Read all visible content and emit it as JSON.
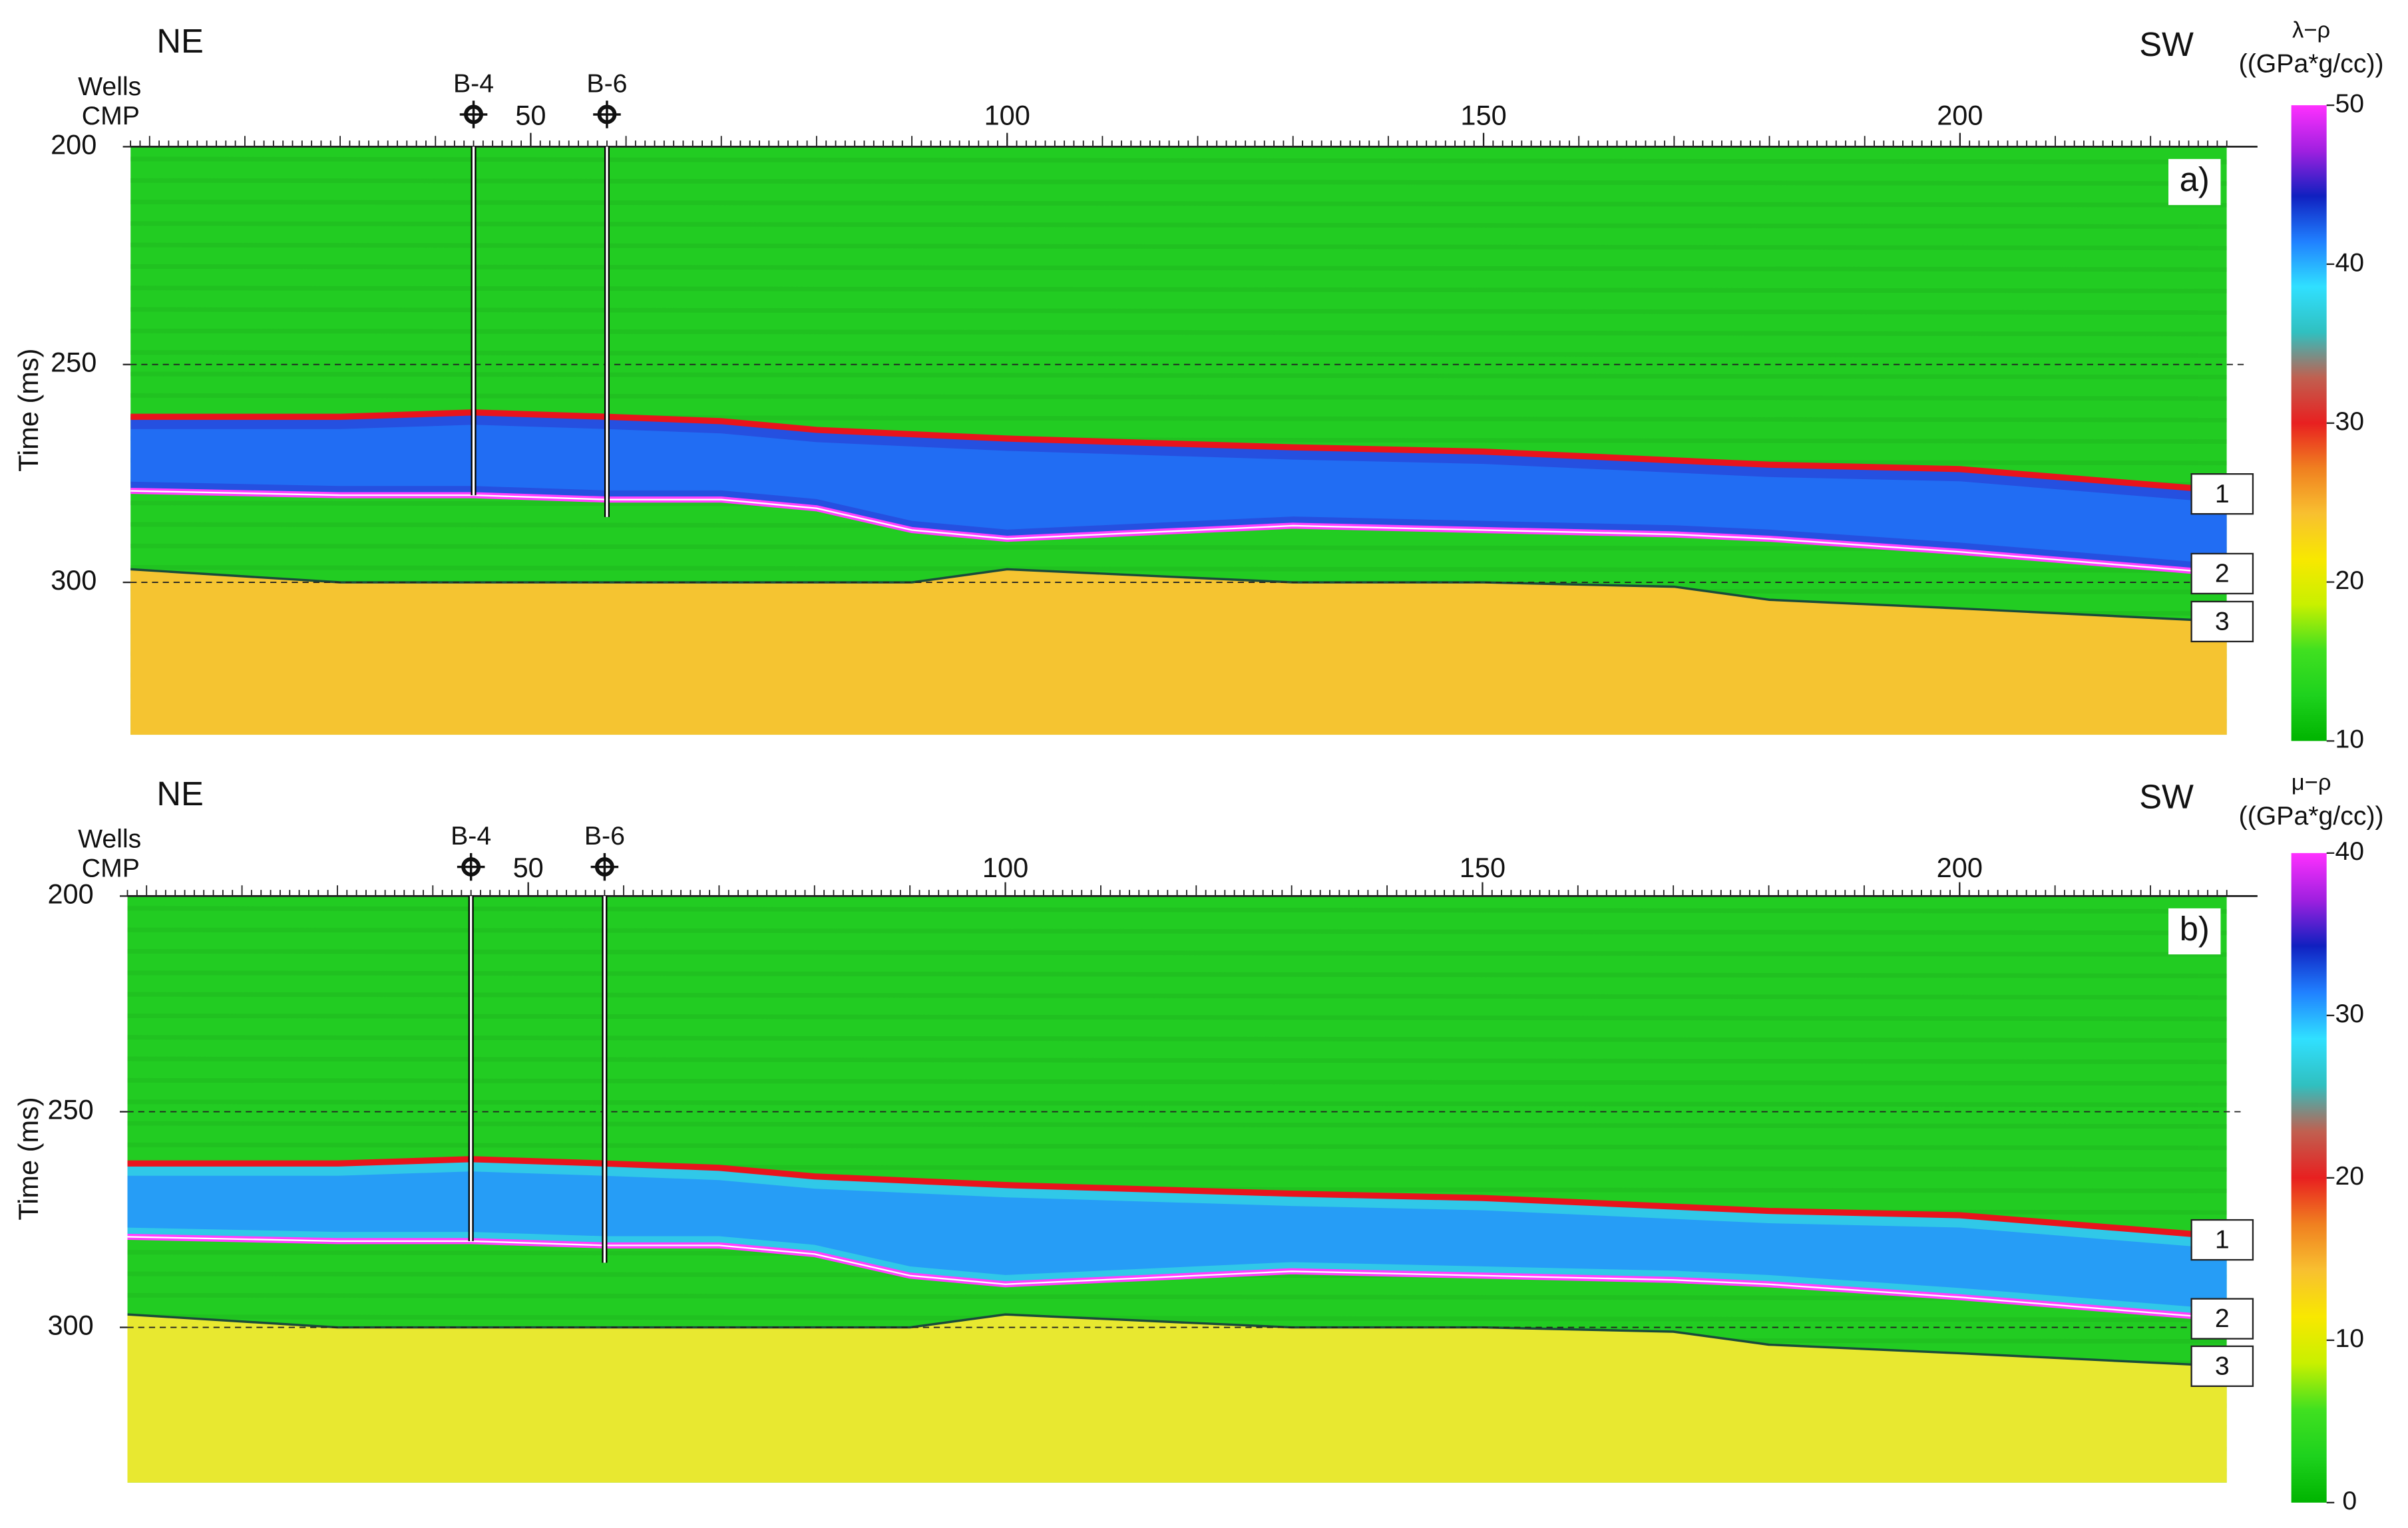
{
  "chart_data": [
    {
      "type": "seismic",
      "direction_left": "NE",
      "direction_right": "SW",
      "wells_label": "Wells",
      "x_label": "CMP",
      "y_label": "Time (ms)",
      "panel_label": "a)",
      "colorbar_title": "λ−ρ",
      "colorbar_unit": "((GPa*g/cc))",
      "xlim": [
        8,
        228
      ],
      "xticks": [
        50,
        100,
        150,
        200
      ],
      "ylim": [
        200,
        335
      ],
      "yticks": [
        200,
        250,
        300
      ],
      "grid": true,
      "clim": [
        10,
        50
      ],
      "cticks": [
        10,
        20,
        30,
        40,
        50
      ],
      "colormap": [
        "#00b400",
        "#1ed21e",
        "#40e020",
        "#c8f000",
        "#f8e800",
        "#f8c030",
        "#f08020",
        "#e82020",
        "#c06050",
        "#30c0c0",
        "#30e0ff",
        "#2080ff",
        "#1020c0",
        "#a020e0",
        "#ff30ff"
      ],
      "background_color": "#22cc22",
      "layer_color": "#2550e0",
      "lower_color": "#f5c431",
      "wells": [
        {
          "name": "B-4",
          "cmp": 44,
          "end": 280
        },
        {
          "name": "B-6",
          "cmp": 58,
          "end": 285
        }
      ],
      "series": [
        {
          "name": "1",
          "color": "#e8141c",
          "x": [
            8,
            30,
            44,
            58,
            70,
            80,
            90,
            100,
            130,
            150,
            170,
            180,
            200,
            228
          ],
          "values": [
            262,
            262,
            261,
            262,
            263,
            265,
            266,
            267,
            269,
            270,
            272,
            273,
            274,
            279
          ]
        },
        {
          "name": "2",
          "color": "#ff40ff",
          "x": [
            8,
            30,
            44,
            58,
            70,
            80,
            90,
            100,
            130,
            150,
            170,
            180,
            200,
            228
          ],
          "values": [
            279,
            280,
            280,
            281,
            281,
            283,
            288,
            290,
            287,
            288,
            289,
            290,
            293,
            298
          ]
        },
        {
          "name": "3",
          "color": "#1a4a3a",
          "x": [
            8,
            30,
            44,
            58,
            70,
            80,
            90,
            100,
            130,
            150,
            170,
            180,
            200,
            228
          ],
          "values": [
            297,
            300,
            300,
            300,
            300,
            300,
            300,
            297,
            300,
            300,
            301,
            304,
            306,
            309
          ]
        }
      ]
    },
    {
      "type": "seismic",
      "direction_left": "NE",
      "direction_right": "SW",
      "wells_label": "Wells",
      "x_label": "CMP",
      "y_label": "Time (ms)",
      "panel_label": "b)",
      "colorbar_title": "μ−ρ",
      "colorbar_unit": "((GPa*g/cc))",
      "xlim": [
        8,
        228
      ],
      "xticks": [
        50,
        100,
        150,
        200
      ],
      "ylim": [
        200,
        336
      ],
      "yticks": [
        200,
        250,
        300
      ],
      "grid": true,
      "clim": [
        0,
        40
      ],
      "cticks": [
        0,
        10,
        20,
        30,
        40
      ],
      "colormap": [
        "#00b400",
        "#1ed21e",
        "#40e020",
        "#c8f000",
        "#f8e800",
        "#f8c030",
        "#f08020",
        "#e82020",
        "#c06050",
        "#30c0c0",
        "#30e0ff",
        "#2080ff",
        "#1020c0",
        "#a020e0",
        "#ff30ff"
      ],
      "background_color": "#22cc22",
      "layer_color": "#30c8e8",
      "lower_color": "#e8e830",
      "wells": [
        {
          "name": "B-4",
          "cmp": 44,
          "end": 280
        },
        {
          "name": "B-6",
          "cmp": 58,
          "end": 285
        }
      ],
      "series": [
        {
          "name": "1",
          "color": "#e8141c",
          "x": [
            8,
            30,
            44,
            58,
            70,
            80,
            90,
            100,
            130,
            150,
            170,
            180,
            200,
            228
          ],
          "values": [
            262,
            262,
            261,
            262,
            263,
            265,
            266,
            267,
            269,
            270,
            272,
            273,
            274,
            279
          ]
        },
        {
          "name": "2",
          "color": "#ff40ff",
          "x": [
            8,
            30,
            44,
            58,
            70,
            80,
            90,
            100,
            130,
            150,
            170,
            180,
            200,
            228
          ],
          "values": [
            279,
            280,
            280,
            281,
            281,
            283,
            288,
            290,
            287,
            288,
            289,
            290,
            293,
            298
          ]
        },
        {
          "name": "3",
          "color": "#1a4a3a",
          "x": [
            8,
            30,
            44,
            58,
            70,
            80,
            90,
            100,
            130,
            150,
            170,
            180,
            200,
            228
          ],
          "values": [
            297,
            300,
            300,
            300,
            300,
            300,
            300,
            297,
            300,
            300,
            301,
            304,
            306,
            309
          ]
        }
      ]
    }
  ]
}
